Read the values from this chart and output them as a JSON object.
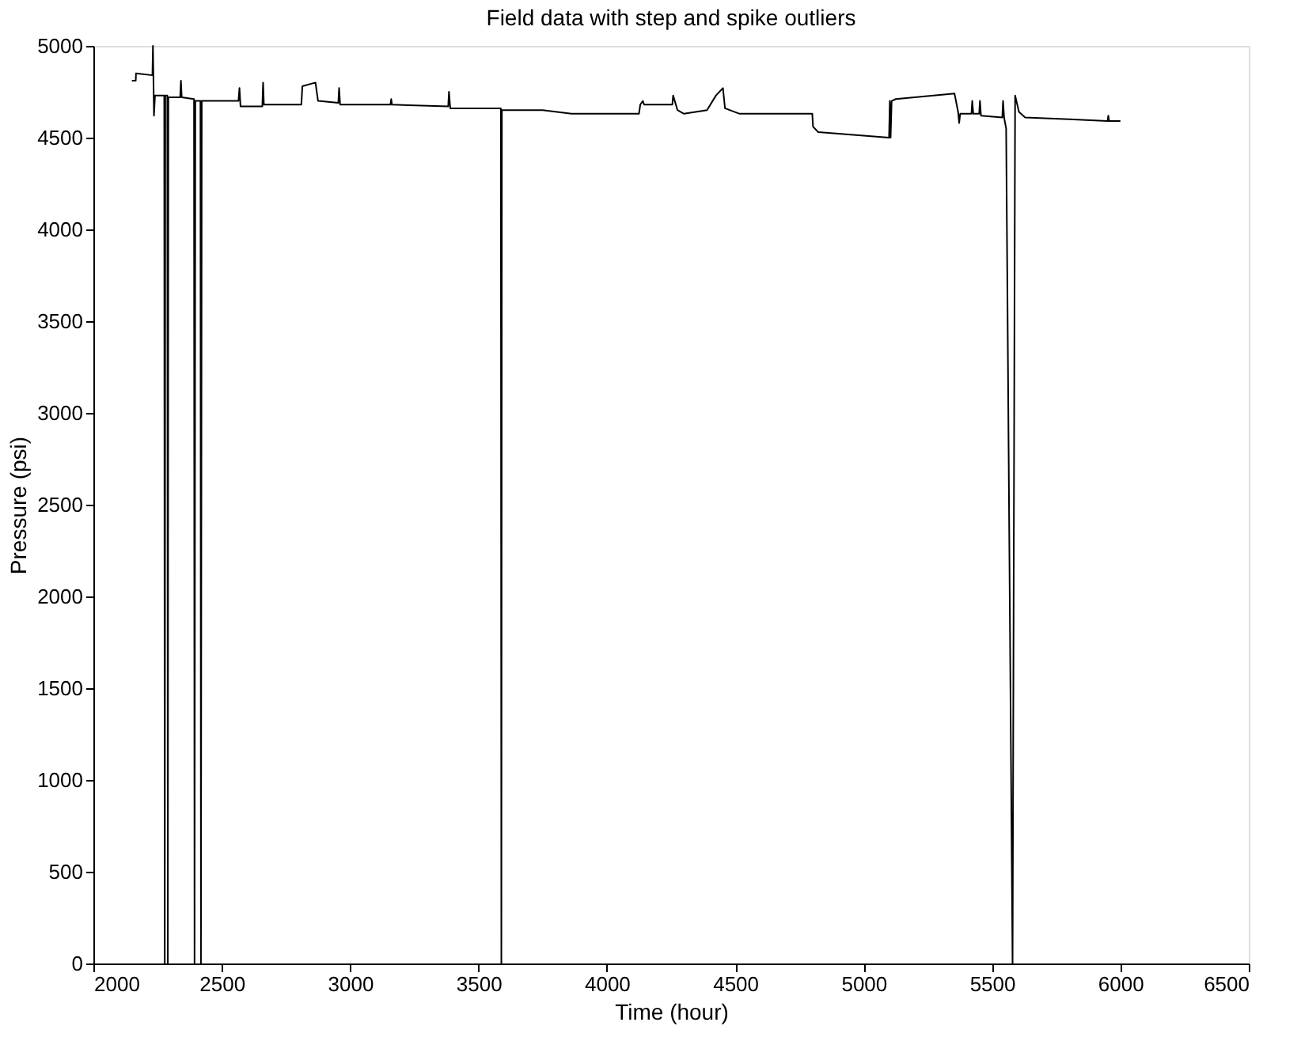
{
  "chart_data": {
    "type": "line",
    "title": "Field data with step and spike outliers",
    "xlabel": "Time (hour)",
    "ylabel": "Pressure (psi)",
    "xlim": [
      2000,
      6500
    ],
    "xticks": [
      2000,
      2500,
      3000,
      3500,
      4000,
      4500,
      5000,
      5500,
      6000,
      6500
    ],
    "ylim": [
      0,
      5000
    ],
    "yticks": [
      0,
      500,
      1000,
      1500,
      2000,
      2500,
      3000,
      3500,
      4000,
      4500,
      5000
    ],
    "grid": false,
    "marker": "none",
    "line_style": "solid",
    "series": [
      {
        "color": "#000000",
        "x": [
          2150,
          2165,
          2166,
          2230,
          2232,
          2236,
          2240,
          2276,
          2278,
          2280,
          2288,
          2290,
          2292,
          2338,
          2341,
          2344,
          2392,
          2394,
          2397,
          2417,
          2419,
          2422,
          2565,
          2569,
          2573,
          2658,
          2661,
          2664,
          2810,
          2814,
          2865,
          2875,
          2954,
          2957,
          2961,
          3157,
          3160,
          3163,
          3382,
          3385,
          3390,
          3587,
          3589,
          3591,
          3750,
          3862,
          4125,
          4130,
          4140,
          4145,
          4255,
          4258,
          4275,
          4300,
          4390,
          4425,
          4452,
          4460,
          4517,
          4800,
          4803,
          4823,
          5099,
          5102,
          5105,
          5109,
          5125,
          5354,
          5368,
          5372,
          5376,
          5420,
          5423,
          5427,
          5450,
          5453,
          5457,
          5540,
          5543,
          5547,
          5555,
          5580,
          5590,
          5605,
          5629,
          5800,
          5950,
          5953,
          5956,
          6000
        ],
        "values": [
          4810,
          4810,
          4850,
          4840,
          5000,
          4620,
          4730,
          4730,
          0,
          4730,
          4730,
          0,
          4720,
          4720,
          4810,
          4720,
          4710,
          0,
          4700,
          4700,
          0,
          4700,
          4700,
          4770,
          4670,
          4670,
          4800,
          4680,
          4680,
          4780,
          4800,
          4700,
          4690,
          4770,
          4680,
          4680,
          4710,
          4680,
          4670,
          4750,
          4660,
          4660,
          0,
          4650,
          4650,
          4630,
          4630,
          4680,
          4700,
          4680,
          4680,
          4730,
          4650,
          4630,
          4650,
          4730,
          4770,
          4660,
          4630,
          4630,
          4560,
          4530,
          4500,
          4700,
          4500,
          4700,
          4710,
          4740,
          4640,
          4580,
          4630,
          4630,
          4700,
          4630,
          4630,
          4700,
          4620,
          4610,
          4700,
          4610,
          4550,
          0,
          4730,
          4640,
          4610,
          4600,
          4590,
          4620,
          4590,
          4590
        ]
      }
    ]
  }
}
